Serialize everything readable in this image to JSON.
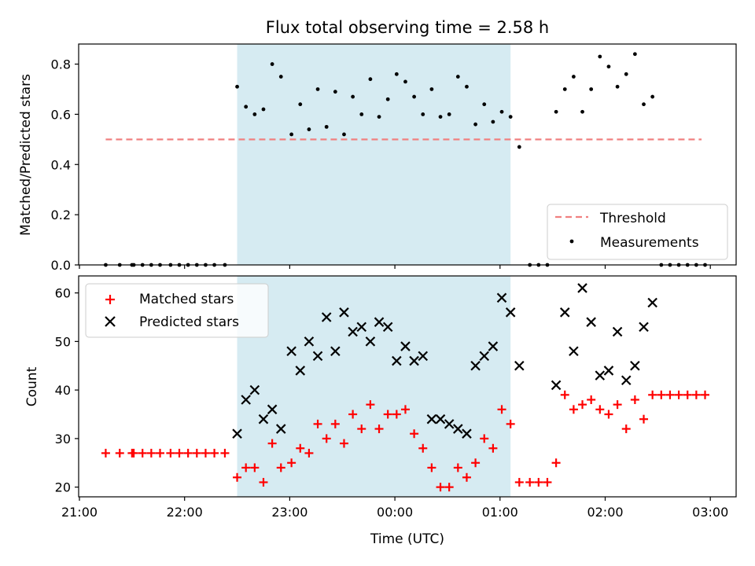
{
  "chart_data": [
    {
      "type": "scatter",
      "title": "Flux total observing time = 2.58 h",
      "ylabel": "Matched/Predicted stars",
      "xlabel": "",
      "ylim": [
        0,
        0.88
      ],
      "yticks": [
        "0.0",
        "0.2",
        "0.4",
        "0.6",
        "0.8"
      ],
      "grid": false,
      "legend_placement": "lower-right",
      "shaded_span": [
        "22:30",
        "01:06"
      ],
      "threshold": {
        "name": "Threshold",
        "value": 0.5,
        "from": "21:15",
        "to": "02:55",
        "color": "#f08080"
      },
      "series": [
        {
          "name": "Measurements",
          "color": "#000000",
          "points": [
            [
              "21:15",
              0.0
            ],
            [
              "21:23",
              0.0
            ],
            [
              "21:30",
              0.0
            ],
            [
              "21:31",
              0.0
            ],
            [
              "21:36",
              0.0
            ],
            [
              "21:41",
              0.0
            ],
            [
              "21:46",
              0.0
            ],
            [
              "21:52",
              0.0
            ],
            [
              "21:57",
              0.0
            ],
            [
              "22:02",
              0.0
            ],
            [
              "22:07",
              0.0
            ],
            [
              "22:12",
              0.0
            ],
            [
              "22:17",
              0.0
            ],
            [
              "22:23",
              0.0
            ],
            [
              "22:30",
              0.71
            ],
            [
              "22:35",
              0.63
            ],
            [
              "22:40",
              0.6
            ],
            [
              "22:45",
              0.62
            ],
            [
              "22:50",
              0.8
            ],
            [
              "22:55",
              0.75
            ],
            [
              "23:01",
              0.52
            ],
            [
              "23:06",
              0.64
            ],
            [
              "23:11",
              0.54
            ],
            [
              "23:16",
              0.7
            ],
            [
              "23:21",
              0.55
            ],
            [
              "23:26",
              0.69
            ],
            [
              "23:31",
              0.52
            ],
            [
              "23:36",
              0.67
            ],
            [
              "23:41",
              0.6
            ],
            [
              "23:46",
              0.74
            ],
            [
              "23:51",
              0.59
            ],
            [
              "23:56",
              0.66
            ],
            [
              "00:01",
              0.76
            ],
            [
              "00:06",
              0.73
            ],
            [
              "00:11",
              0.67
            ],
            [
              "00:16",
              0.6
            ],
            [
              "00:21",
              0.7
            ],
            [
              "00:26",
              0.59
            ],
            [
              "00:31",
              0.6
            ],
            [
              "00:36",
              0.75
            ],
            [
              "00:41",
              0.71
            ],
            [
              "00:46",
              0.56
            ],
            [
              "00:51",
              0.64
            ],
            [
              "00:56",
              0.57
            ],
            [
              "01:01",
              0.61
            ],
            [
              "01:06",
              0.59
            ],
            [
              "01:11",
              0.47
            ],
            [
              "01:17",
              0.0
            ],
            [
              "01:22",
              0.0
            ],
            [
              "01:27",
              0.0
            ],
            [
              "01:32",
              0.61
            ],
            [
              "01:37",
              0.7
            ],
            [
              "01:42",
              0.75
            ],
            [
              "01:47",
              0.61
            ],
            [
              "01:52",
              0.7
            ],
            [
              "01:57",
              0.83
            ],
            [
              "02:02",
              0.79
            ],
            [
              "02:07",
              0.71
            ],
            [
              "02:12",
              0.76
            ],
            [
              "02:17",
              0.84
            ],
            [
              "02:22",
              0.64
            ],
            [
              "02:27",
              0.67
            ],
            [
              "02:32",
              0.0
            ],
            [
              "02:37",
              0.0
            ],
            [
              "02:42",
              0.0
            ],
            [
              "02:47",
              0.0
            ],
            [
              "02:52",
              0.0
            ],
            [
              "02:57",
              0.0
            ]
          ]
        }
      ]
    },
    {
      "type": "scatter",
      "title": "",
      "ylabel": "Count",
      "xlabel": "Time (UTC)",
      "ylim": [
        18,
        63.5
      ],
      "yticks": [
        "20",
        "30",
        "40",
        "50",
        "60"
      ],
      "xticks": [
        "21:00",
        "22:00",
        "23:00",
        "00:00",
        "01:00",
        "02:00",
        "03:00"
      ],
      "grid": false,
      "legend_placement": "upper-left",
      "shaded_span": [
        "22:30",
        "01:06"
      ],
      "series": [
        {
          "name": "Matched stars",
          "marker": "plus",
          "color": "#ff0000",
          "points": [
            [
              "21:15",
              27
            ],
            [
              "21:23",
              27
            ],
            [
              "21:30",
              27
            ],
            [
              "21:31",
              27
            ],
            [
              "21:36",
              27
            ],
            [
              "21:41",
              27
            ],
            [
              "21:46",
              27
            ],
            [
              "21:52",
              27
            ],
            [
              "21:57",
              27
            ],
            [
              "22:02",
              27
            ],
            [
              "22:07",
              27
            ],
            [
              "22:12",
              27
            ],
            [
              "22:17",
              27
            ],
            [
              "22:23",
              27
            ],
            [
              "22:30",
              22
            ],
            [
              "22:35",
              24
            ],
            [
              "22:40",
              24
            ],
            [
              "22:45",
              21
            ],
            [
              "22:50",
              29
            ],
            [
              "22:55",
              24
            ],
            [
              "23:01",
              25
            ],
            [
              "23:06",
              28
            ],
            [
              "23:11",
              27
            ],
            [
              "23:16",
              33
            ],
            [
              "23:21",
              30
            ],
            [
              "23:26",
              33
            ],
            [
              "23:31",
              29
            ],
            [
              "23:36",
              35
            ],
            [
              "23:41",
              32
            ],
            [
              "23:46",
              37
            ],
            [
              "23:51",
              32
            ],
            [
              "23:56",
              35
            ],
            [
              "00:01",
              35
            ],
            [
              "00:06",
              36
            ],
            [
              "00:11",
              31
            ],
            [
              "00:16",
              28
            ],
            [
              "00:21",
              24
            ],
            [
              "00:26",
              20
            ],
            [
              "00:31",
              20
            ],
            [
              "00:36",
              24
            ],
            [
              "00:41",
              22
            ],
            [
              "00:46",
              25
            ],
            [
              "00:51",
              30
            ],
            [
              "00:56",
              28
            ],
            [
              "01:01",
              36
            ],
            [
              "01:06",
              33
            ],
            [
              "01:11",
              21
            ],
            [
              "01:17",
              21
            ],
            [
              "01:22",
              21
            ],
            [
              "01:27",
              21
            ],
            [
              "01:32",
              25
            ],
            [
              "01:37",
              39
            ],
            [
              "01:42",
              36
            ],
            [
              "01:47",
              37
            ],
            [
              "01:52",
              38
            ],
            [
              "01:57",
              36
            ],
            [
              "02:02",
              35
            ],
            [
              "02:07",
              37
            ],
            [
              "02:12",
              32
            ],
            [
              "02:17",
              38
            ],
            [
              "02:22",
              34
            ],
            [
              "02:27",
              39
            ],
            [
              "02:32",
              39
            ],
            [
              "02:37",
              39
            ],
            [
              "02:42",
              39
            ],
            [
              "02:47",
              39
            ],
            [
              "02:52",
              39
            ],
            [
              "02:57",
              39
            ]
          ]
        },
        {
          "name": "Predicted stars",
          "marker": "x",
          "color": "#000000",
          "points": [
            [
              "22:30",
              31
            ],
            [
              "22:35",
              38
            ],
            [
              "22:40",
              40
            ],
            [
              "22:45",
              34
            ],
            [
              "22:50",
              36
            ],
            [
              "22:55",
              32
            ],
            [
              "23:01",
              48
            ],
            [
              "23:06",
              44
            ],
            [
              "23:11",
              50
            ],
            [
              "23:16",
              47
            ],
            [
              "23:21",
              55
            ],
            [
              "23:26",
              48
            ],
            [
              "23:31",
              56
            ],
            [
              "23:36",
              52
            ],
            [
              "23:41",
              53
            ],
            [
              "23:46",
              50
            ],
            [
              "23:51",
              54
            ],
            [
              "23:56",
              53
            ],
            [
              "00:01",
              46
            ],
            [
              "00:06",
              49
            ],
            [
              "00:11",
              46
            ],
            [
              "00:16",
              47
            ],
            [
              "00:21",
              34
            ],
            [
              "00:26",
              34
            ],
            [
              "00:31",
              33
            ],
            [
              "00:36",
              32
            ],
            [
              "00:41",
              31
            ],
            [
              "00:46",
              45
            ],
            [
              "00:51",
              47
            ],
            [
              "00:56",
              49
            ],
            [
              "01:01",
              59
            ],
            [
              "01:06",
              56
            ],
            [
              "01:11",
              45
            ],
            [
              "01:32",
              41
            ],
            [
              "01:37",
              56
            ],
            [
              "01:42",
              48
            ],
            [
              "01:47",
              61
            ],
            [
              "01:52",
              54
            ],
            [
              "01:57",
              43
            ],
            [
              "02:02",
              44
            ],
            [
              "02:07",
              52
            ],
            [
              "02:12",
              42
            ],
            [
              "02:17",
              45
            ],
            [
              "02:22",
              53
            ],
            [
              "02:27",
              58
            ]
          ]
        }
      ]
    }
  ]
}
